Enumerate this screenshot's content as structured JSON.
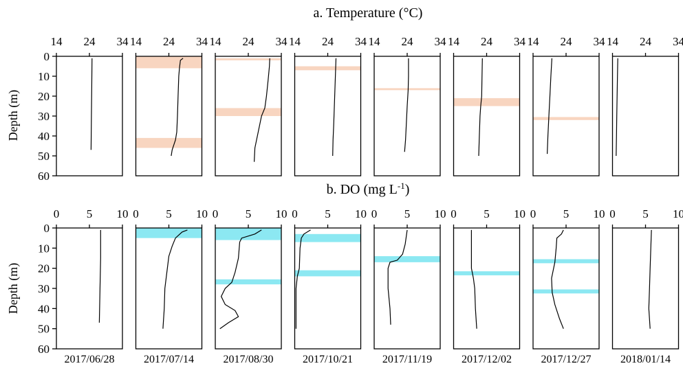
{
  "chart_data": [
    {
      "type": "line",
      "title": "a. Temperature (°C)",
      "ylabel": "Depth (m)",
      "x_ticks": [
        14,
        24,
        34
      ],
      "ylim": [
        0,
        60
      ],
      "y_ticks": [
        0,
        10,
        20,
        30,
        40,
        50,
        60
      ],
      "y_reversed": true,
      "band_color": "#f8d5c0",
      "line_color": "#000000",
      "panels": [
        {
          "date": "2017/06/28",
          "bands": [],
          "profile": [
            [
              24.8,
              1
            ],
            [
              24.7,
              15
            ],
            [
              24.6,
              30
            ],
            [
              24.5,
              47
            ]
          ]
        },
        {
          "date": "2017/07/14",
          "bands": [
            [
              0,
              6
            ],
            [
              41,
              46
            ]
          ],
          "profile": [
            [
              28.3,
              1
            ],
            [
              27.5,
              2
            ],
            [
              27.2,
              6
            ],
            [
              27.0,
              10
            ],
            [
              26.8,
              20
            ],
            [
              26.6,
              30
            ],
            [
              26.4,
              38
            ],
            [
              26.0,
              42
            ],
            [
              25.0,
              47
            ],
            [
              24.7,
              50
            ]
          ]
        },
        {
          "date": "2017/08/30",
          "bands": [
            [
              1,
              2
            ],
            [
              26,
              30
            ]
          ],
          "profile": [
            [
              30.5,
              1
            ],
            [
              30.4,
              5
            ],
            [
              30.0,
              12
            ],
            [
              29.5,
              20
            ],
            [
              29.0,
              26
            ],
            [
              28.0,
              30
            ],
            [
              27.0,
              38
            ],
            [
              26.0,
              46
            ],
            [
              25.8,
              53
            ]
          ]
        },
        {
          "date": "2017/10/21",
          "bands": [
            [
              5,
              7
            ]
          ],
          "profile": [
            [
              26.5,
              1
            ],
            [
              26.4,
              6
            ],
            [
              26.2,
              15
            ],
            [
              26.0,
              25
            ],
            [
              25.8,
              35
            ],
            [
              25.6,
              42
            ],
            [
              25.5,
              50
            ]
          ]
        },
        {
          "date": "2017/11/19",
          "bands": [
            [
              16,
              17
            ]
          ],
          "profile": [
            [
              24.4,
              1
            ],
            [
              24.4,
              10
            ],
            [
              24.3,
              17
            ],
            [
              24.0,
              25
            ],
            [
              23.7,
              35
            ],
            [
              23.5,
              42
            ],
            [
              23.2,
              48
            ]
          ]
        },
        {
          "date": "2017/12/02",
          "bands": [
            [
              21,
              25
            ]
          ],
          "profile": [
            [
              22.7,
              1
            ],
            [
              22.6,
              10
            ],
            [
              22.5,
              20
            ],
            [
              22.2,
              25
            ],
            [
              22.0,
              30
            ],
            [
              21.8,
              40
            ],
            [
              21.6,
              50
            ]
          ]
        },
        {
          "date": "2017/12/27",
          "bands": [
            [
              30.5,
              32
            ]
          ],
          "profile": [
            [
              19.7,
              1
            ],
            [
              19.4,
              10
            ],
            [
              19.1,
              20
            ],
            [
              18.8,
              30
            ],
            [
              18.5,
              40
            ],
            [
              18.3,
              49
            ]
          ]
        },
        {
          "date": "2018/01/14",
          "bands": [],
          "profile": [
            [
              15.6,
              1
            ],
            [
              15.5,
              10
            ],
            [
              15.4,
              20
            ],
            [
              15.3,
              30
            ],
            [
              15.2,
              40
            ],
            [
              15.1,
              50
            ]
          ]
        }
      ]
    },
    {
      "type": "line",
      "title": "b. DO (mg L",
      "title_sup": "-1",
      "title_end": ")",
      "ylabel": "Depth (m)",
      "x_ticks": [
        0,
        5,
        10
      ],
      "ylim": [
        0,
        60
      ],
      "y_ticks": [
        0,
        10,
        20,
        30,
        40,
        50,
        60
      ],
      "y_reversed": true,
      "band_color": "#8ce8f2",
      "line_color": "#000000",
      "panels": [
        {
          "date": "2017/06/28",
          "bands": [],
          "profile": [
            [
              6.7,
              1
            ],
            [
              6.7,
              15
            ],
            [
              6.6,
              30
            ],
            [
              6.5,
              47
            ]
          ]
        },
        {
          "date": "2017/07/14",
          "bands": [
            [
              0,
              5
            ]
          ],
          "profile": [
            [
              7.8,
              1
            ],
            [
              7.0,
              2
            ],
            [
              6.0,
              5
            ],
            [
              5.5,
              9
            ],
            [
              5.0,
              14
            ],
            [
              4.7,
              22
            ],
            [
              4.4,
              30
            ],
            [
              4.3,
              40
            ],
            [
              4.1,
              50
            ]
          ]
        },
        {
          "date": "2017/08/30",
          "bands": [
            [
              0,
              6
            ],
            [
              25.5,
              28
            ]
          ],
          "profile": [
            [
              7.0,
              1
            ],
            [
              6.0,
              3
            ],
            [
              4.0,
              5
            ],
            [
              3.7,
              7
            ],
            [
              3.5,
              15
            ],
            [
              3.0,
              22
            ],
            [
              2.5,
              27
            ],
            [
              1.5,
              30
            ],
            [
              0.9,
              34
            ],
            [
              1.5,
              38
            ],
            [
              3.0,
              41
            ],
            [
              3.5,
              44
            ],
            [
              2.0,
              47
            ],
            [
              0.7,
              50
            ]
          ]
        },
        {
          "date": "2017/10/21",
          "bands": [
            [
              3,
              7
            ],
            [
              21,
              24
            ]
          ],
          "profile": [
            [
              2.4,
              1
            ],
            [
              1.4,
              3
            ],
            [
              1.0,
              5
            ],
            [
              0.8,
              10
            ],
            [
              0.7,
              20
            ],
            [
              0.4,
              24
            ],
            [
              0.2,
              30
            ],
            [
              0.2,
              40
            ],
            [
              0.2,
              50
            ]
          ]
        },
        {
          "date": "2017/11/19",
          "bands": [
            [
              14,
              17
            ]
          ],
          "profile": [
            [
              5.0,
              1
            ],
            [
              4.7,
              8
            ],
            [
              4.3,
              13
            ],
            [
              3.5,
              16
            ],
            [
              2.4,
              17
            ],
            [
              2.1,
              20
            ],
            [
              2.1,
              30
            ],
            [
              2.4,
              40
            ],
            [
              2.5,
              48
            ]
          ]
        },
        {
          "date": "2017/12/02",
          "bands": [
            [
              21.5,
              23.5
            ]
          ],
          "profile": [
            [
              2.7,
              1
            ],
            [
              2.7,
              10
            ],
            [
              2.7,
              20
            ],
            [
              3.0,
              25
            ],
            [
              3.2,
              30
            ],
            [
              3.3,
              40
            ],
            [
              3.5,
              50
            ]
          ]
        },
        {
          "date": "2017/12/27",
          "bands": [
            [
              15.5,
              17.5
            ],
            [
              30.5,
              32.5
            ]
          ],
          "profile": [
            [
              4.6,
              1
            ],
            [
              4.3,
              3
            ],
            [
              3.6,
              5
            ],
            [
              3.5,
              10
            ],
            [
              3.3,
              17
            ],
            [
              2.8,
              25
            ],
            [
              2.9,
              32
            ],
            [
              3.3,
              38
            ],
            [
              4.0,
              45
            ],
            [
              4.6,
              50
            ]
          ]
        },
        {
          "date": "2018/01/14",
          "bands": [],
          "profile": [
            [
              5.9,
              1
            ],
            [
              5.8,
              10
            ],
            [
              5.7,
              20
            ],
            [
              5.6,
              30
            ],
            [
              5.5,
              40
            ],
            [
              5.7,
              50
            ]
          ]
        }
      ]
    }
  ]
}
